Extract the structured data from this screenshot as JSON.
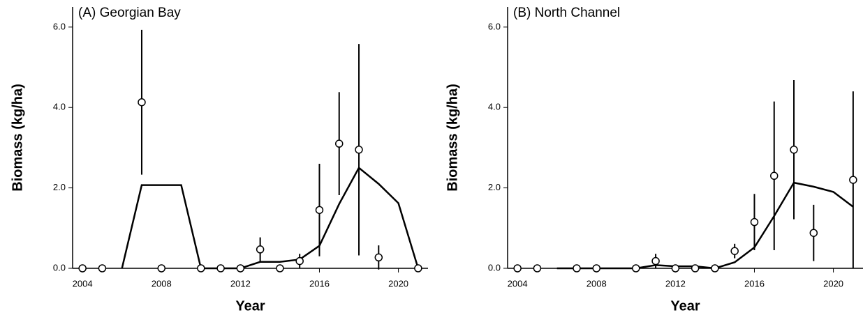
{
  "chart_data": [
    {
      "type": "errorbar-line",
      "title": "(A) Georgian Bay",
      "x_label": "Year",
      "y_label": "Biomass (kg/ha)",
      "xlim": [
        2003.5,
        2021.5
      ],
      "xticks": [
        2004,
        2008,
        2012,
        2016,
        2020
      ],
      "ylim": [
        0,
        6.5
      ],
      "yticks": [
        {
          "value": 0,
          "label": "0.0"
        },
        {
          "value": 2,
          "label": "2.0"
        },
        {
          "value": 4,
          "label": "4.0"
        },
        {
          "value": 6,
          "label": "6.0"
        }
      ],
      "color": "#000000",
      "points": {
        "x": [
          2004,
          2005,
          2007,
          2008,
          2010,
          2011,
          2012,
          2013,
          2014,
          2015,
          2016,
          2017,
          2018,
          2019,
          2021
        ],
        "values": [
          0,
          0,
          4.13,
          0,
          0,
          0,
          0,
          0.47,
          0,
          0.18,
          1.45,
          3.1,
          2.95,
          0.27,
          0
        ],
        "errors": [
          0,
          0,
          1.8,
          0,
          0,
          0,
          0,
          0.3,
          0,
          0.18,
          1.15,
          1.28,
          2.63,
          0.3,
          0
        ]
      },
      "line": {
        "x": [
          2006,
          2007,
          2008,
          2009,
          2010,
          2011,
          2012,
          2013,
          2014,
          2015,
          2016,
          2017,
          2018,
          2019,
          2020,
          2021
        ],
        "values": [
          0,
          2.07,
          2.07,
          2.07,
          0,
          0,
          0,
          0.16,
          0.16,
          0.22,
          0.56,
          1.6,
          2.5,
          2.1,
          1.62,
          0
        ]
      }
    },
    {
      "type": "errorbar-line",
      "title": "(B) North Channel",
      "x_label": "Year",
      "y_label": "Biomass (kg/ha)",
      "xlim": [
        2003.5,
        2021.5
      ],
      "xticks": [
        2004,
        2008,
        2012,
        2016,
        2020
      ],
      "ylim": [
        0,
        6.5
      ],
      "yticks": [
        {
          "value": 0,
          "label": "0.0"
        },
        {
          "value": 2,
          "label": "2.0"
        },
        {
          "value": 4,
          "label": "4.0"
        },
        {
          "value": 6,
          "label": "6.0"
        }
      ],
      "color": "#000000",
      "points": {
        "x": [
          2004,
          2005,
          2007,
          2008,
          2010,
          2011,
          2012,
          2013,
          2014,
          2015,
          2016,
          2017,
          2018,
          2019,
          2021
        ],
        "values": [
          0,
          0,
          0,
          0,
          0,
          0.18,
          0,
          0,
          0,
          0.43,
          1.15,
          2.3,
          2.95,
          0.88,
          2.2
        ],
        "errors": [
          0,
          0,
          0,
          0,
          0,
          0.18,
          0,
          0,
          0,
          0.18,
          0.7,
          1.85,
          1.73,
          0.7,
          2.2
        ]
      },
      "line": {
        "x": [
          2006,
          2010,
          2011,
          2012,
          2013,
          2014,
          2015,
          2016,
          2017,
          2018,
          2019,
          2020,
          2021
        ],
        "values": [
          0,
          0,
          0.08,
          0.05,
          0.05,
          0,
          0.15,
          0.52,
          1.3,
          2.13,
          2.03,
          1.9,
          1.53
        ]
      }
    }
  ]
}
